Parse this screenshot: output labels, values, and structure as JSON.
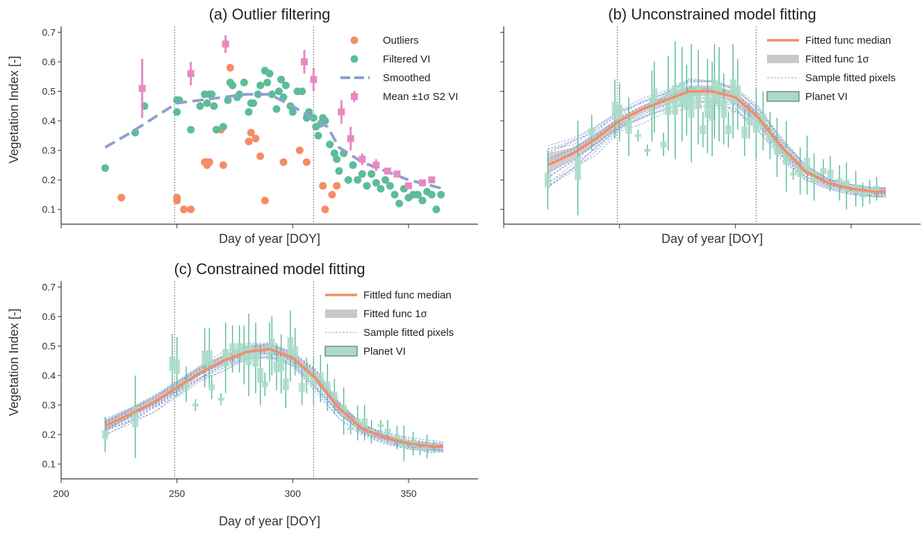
{
  "chart_data": [
    {
      "type": "scatter",
      "title": "(a) Outlier filtering",
      "xlabel": "Day of year [DOY]",
      "ylabel": "Vegetation Index [-]",
      "xlim": [
        200,
        380
      ],
      "ylim": [
        0.05,
        0.72
      ],
      "yticks": [
        0.1,
        0.2,
        0.3,
        0.4,
        0.5,
        0.6,
        0.7
      ],
      "xticks": [
        200,
        250,
        300,
        350
      ],
      "show_xtick_labels": false,
      "vlines": [
        249,
        309
      ],
      "legend_position": "top-right",
      "colors": {
        "outliers": "#f58c66",
        "filtered": "#5dbc9a",
        "smoothed": "#8fa0cf",
        "s2": "#e58ac3"
      },
      "series": [
        {
          "name": "Outliers",
          "kind": "points",
          "x": [
            226,
            250,
            250,
            253,
            256,
            263,
            263,
            262,
            264,
            269,
            270,
            273,
            281,
            282,
            284,
            286,
            288,
            296,
            303,
            306,
            313,
            314,
            317,
            319
          ],
          "y": [
            0.14,
            0.14,
            0.13,
            0.1,
            0.1,
            0.26,
            0.25,
            0.26,
            0.26,
            0.37,
            0.25,
            0.58,
            0.33,
            0.36,
            0.34,
            0.28,
            0.13,
            0.26,
            0.3,
            0.26,
            0.18,
            0.1,
            0.15,
            0.18
          ]
        },
        {
          "name": "Filtered VI",
          "kind": "points",
          "x": [
            219,
            232,
            236,
            250,
            250,
            251,
            256,
            260,
            262,
            263,
            264,
            265,
            266,
            267,
            270,
            272,
            273,
            274,
            276,
            277,
            279,
            281,
            282,
            283,
            285,
            286,
            288,
            289,
            290,
            291,
            293,
            294,
            295,
            296,
            297,
            299,
            300,
            302,
            304,
            306,
            307,
            309,
            310,
            311,
            312,
            313,
            314,
            316,
            318,
            319,
            320,
            322,
            324,
            326,
            328,
            330,
            332,
            334,
            336,
            338,
            340,
            342,
            344,
            346,
            348,
            350,
            352,
            354,
            356,
            358,
            360,
            362,
            364
          ],
          "y": [
            0.24,
            0.36,
            0.45,
            0.47,
            0.43,
            0.47,
            0.37,
            0.45,
            0.49,
            0.46,
            0.49,
            0.49,
            0.45,
            0.37,
            0.38,
            0.47,
            0.53,
            0.52,
            0.48,
            0.49,
            0.53,
            0.43,
            0.46,
            0.46,
            0.49,
            0.52,
            0.57,
            0.53,
            0.56,
            0.49,
            0.44,
            0.5,
            0.54,
            0.48,
            0.52,
            0.45,
            0.43,
            0.5,
            0.5,
            0.41,
            0.43,
            0.41,
            0.38,
            0.35,
            0.39,
            0.41,
            0.4,
            0.32,
            0.29,
            0.27,
            0.23,
            0.29,
            0.2,
            0.25,
            0.2,
            0.22,
            0.18,
            0.22,
            0.19,
            0.17,
            0.2,
            0.18,
            0.15,
            0.12,
            0.17,
            0.14,
            0.15,
            0.15,
            0.13,
            0.16,
            0.15,
            0.1,
            0.15
          ]
        },
        {
          "name": "Smoothed",
          "kind": "dashed-line",
          "x": [
            219,
            230,
            240,
            250,
            260,
            270,
            280,
            290,
            300,
            308,
            315,
            320,
            330,
            340,
            350,
            360,
            365
          ],
          "y": [
            0.31,
            0.36,
            0.41,
            0.46,
            0.47,
            0.48,
            0.49,
            0.49,
            0.45,
            0.41,
            0.38,
            0.31,
            0.26,
            0.23,
            0.2,
            0.18,
            0.17
          ]
        },
        {
          "name": "Mean ±1σ S2 VI",
          "kind": "square-errorbar",
          "x": [
            235,
            256,
            271,
            305,
            309,
            321,
            325,
            330,
            336,
            341,
            345,
            350,
            356,
            360
          ],
          "y": [
            0.51,
            0.56,
            0.66,
            0.6,
            0.54,
            0.43,
            0.34,
            0.27,
            0.25,
            0.23,
            0.22,
            0.18,
            0.19,
            0.2
          ],
          "err": [
            0.1,
            0.04,
            0.03,
            0.04,
            0.04,
            0.04,
            0.04,
            0.02,
            0.02,
            0.01,
            0.01,
            0.01,
            0.01,
            0.01
          ]
        }
      ]
    },
    {
      "type": "line",
      "title": "(b) Unconstrained model fitting",
      "xlabel": "Day of year [DOY]",
      "ylabel": "",
      "xlim": [
        200,
        380
      ],
      "ylim": [
        0.05,
        0.72
      ],
      "yticks": [
        0.1,
        0.2,
        0.3,
        0.4,
        0.5,
        0.6,
        0.7
      ],
      "xticks": [
        200,
        250,
        300,
        350
      ],
      "show_xtick_labels": false,
      "show_ytick_labels": false,
      "vlines": [
        249,
        309
      ],
      "legend_position": "top-right",
      "colors": {
        "median": "#f58c66",
        "band": "#c8c8c8",
        "samples": "#8fa0cf",
        "planet": "#5dbc9a"
      },
      "series": [
        {
          "name": "Fitted func median",
          "kind": "median-line",
          "x": [
            219,
            230,
            240,
            250,
            260,
            270,
            280,
            290,
            300,
            310,
            320,
            330,
            340,
            350,
            360,
            365
          ],
          "y": [
            0.25,
            0.29,
            0.34,
            0.4,
            0.44,
            0.47,
            0.5,
            0.5,
            0.48,
            0.41,
            0.31,
            0.23,
            0.19,
            0.17,
            0.16,
            0.16
          ]
        },
        {
          "name": "Fitted func 1σ",
          "kind": "band",
          "x": [
            219,
            230,
            240,
            250,
            260,
            270,
            280,
            290,
            300,
            310,
            320,
            330,
            340,
            350,
            360,
            365
          ],
          "low": [
            0.22,
            0.27,
            0.32,
            0.38,
            0.43,
            0.46,
            0.48,
            0.49,
            0.46,
            0.39,
            0.29,
            0.22,
            0.18,
            0.16,
            0.15,
            0.15
          ],
          "high": [
            0.29,
            0.31,
            0.36,
            0.41,
            0.45,
            0.49,
            0.52,
            0.52,
            0.5,
            0.43,
            0.33,
            0.25,
            0.2,
            0.18,
            0.17,
            0.17
          ]
        },
        {
          "name": "Sample fitted pixels",
          "kind": "sample-lines",
          "x": [
            219,
            230,
            240,
            250,
            260,
            270,
            280,
            290,
            300,
            310,
            320,
            330,
            340,
            350,
            360,
            365
          ],
          "spread": [
            0.08,
            0.06,
            0.05,
            0.04,
            0.04,
            0.04,
            0.05,
            0.05,
            0.05,
            0.05,
            0.04,
            0.03,
            0.02,
            0.02,
            0.02,
            0.02
          ],
          "count": 18
        },
        {
          "name": "Planet VI",
          "kind": "box",
          "x": [
            219,
            232,
            238,
            248,
            250,
            254,
            258,
            262,
            264,
            265,
            269,
            271,
            274,
            277,
            279,
            281,
            284,
            286,
            288,
            290,
            291,
            293,
            295,
            297,
            299,
            301,
            304,
            306,
            309,
            312,
            315,
            318,
            322,
            325,
            328,
            331,
            334,
            338,
            341,
            345,
            348,
            352,
            355,
            358,
            361
          ],
          "y": [
            0.2,
            0.24,
            0.36,
            0.44,
            0.43,
            0.38,
            0.35,
            0.3,
            0.45,
            0.48,
            0.32,
            0.46,
            0.47,
            0.49,
            0.47,
            0.46,
            0.48,
            0.37,
            0.45,
            0.44,
            0.5,
            0.49,
            0.44,
            0.37,
            0.5,
            0.49,
            0.36,
            0.4,
            0.39,
            0.4,
            0.35,
            0.31,
            0.28,
            0.22,
            0.23,
            0.25,
            0.21,
            0.23,
            0.22,
            0.19,
            0.18,
            0.17,
            0.15,
            0.16,
            0.17
          ],
          "err": [
            0.05,
            0.08,
            0.03,
            0.05,
            0.05,
            0.05,
            0.01,
            0.01,
            0.06,
            0.06,
            0.02,
            0.08,
            0.1,
            0.08,
            0.06,
            0.1,
            0.08,
            0.03,
            0.08,
            0.08,
            0.08,
            0.08,
            0.06,
            0.03,
            0.08,
            0.06,
            0.04,
            0.03,
            0.06,
            0.05,
            0.04,
            0.05,
            0.06,
            0.01,
            0.04,
            0.05,
            0.04,
            0.02,
            0.03,
            0.03,
            0.04,
            0.03,
            0.02,
            0.02,
            0.02
          ]
        }
      ]
    },
    {
      "type": "line",
      "title": "(c) Constrained model fitting",
      "xlabel": "Day of year [DOY]",
      "ylabel": "Vegetation Index [-]",
      "xlim": [
        200,
        380
      ],
      "ylim": [
        0.05,
        0.72
      ],
      "yticks": [
        0.1,
        0.2,
        0.3,
        0.4,
        0.5,
        0.6,
        0.7
      ],
      "xticks": [
        200,
        250,
        300,
        350
      ],
      "show_xtick_labels": true,
      "vlines": [
        249,
        309
      ],
      "legend_position": "top-right",
      "colors": {
        "median": "#f58c66",
        "band": "#c8c8c8",
        "samples": "#8fa0cf",
        "planet": "#5dbc9a"
      },
      "series": [
        {
          "name": "Fittled func median",
          "kind": "median-line",
          "x": [
            219,
            230,
            240,
            250,
            260,
            270,
            280,
            290,
            300,
            310,
            320,
            330,
            340,
            350,
            360,
            365
          ],
          "y": [
            0.23,
            0.27,
            0.31,
            0.36,
            0.41,
            0.45,
            0.48,
            0.49,
            0.46,
            0.39,
            0.29,
            0.22,
            0.19,
            0.17,
            0.16,
            0.16
          ]
        },
        {
          "name": "Fitted func 1σ",
          "kind": "band",
          "x": [
            219,
            230,
            240,
            250,
            260,
            270,
            280,
            290,
            300,
            310,
            320,
            330,
            340,
            350,
            360,
            365
          ],
          "low": [
            0.21,
            0.26,
            0.3,
            0.35,
            0.4,
            0.44,
            0.47,
            0.48,
            0.45,
            0.38,
            0.28,
            0.21,
            0.18,
            0.16,
            0.15,
            0.15
          ],
          "high": [
            0.25,
            0.29,
            0.33,
            0.38,
            0.43,
            0.47,
            0.5,
            0.51,
            0.48,
            0.41,
            0.31,
            0.24,
            0.2,
            0.18,
            0.17,
            0.17
          ]
        },
        {
          "name": "Sample fitted pixels",
          "kind": "sample-lines",
          "x": [
            219,
            230,
            240,
            250,
            260,
            270,
            280,
            290,
            300,
            310,
            320,
            330,
            340,
            350,
            360,
            365
          ],
          "spread": [
            0.03,
            0.03,
            0.03,
            0.03,
            0.03,
            0.03,
            0.03,
            0.03,
            0.03,
            0.04,
            0.03,
            0.02,
            0.02,
            0.02,
            0.02,
            0.02
          ],
          "count": 18
        },
        {
          "name": "Planet VI",
          "kind": "box",
          "x": [
            219,
            232,
            248,
            250,
            254,
            258,
            262,
            264,
            265,
            269,
            271,
            274,
            277,
            279,
            281,
            284,
            286,
            288,
            290,
            291,
            293,
            295,
            297,
            299,
            301,
            304,
            306,
            309,
            312,
            315,
            318,
            322,
            325,
            328,
            331,
            334,
            338,
            341,
            345,
            348,
            352,
            355,
            358,
            361
          ],
          "y": [
            0.2,
            0.26,
            0.44,
            0.43,
            0.37,
            0.3,
            0.46,
            0.46,
            0.36,
            0.32,
            0.46,
            0.49,
            0.49,
            0.47,
            0.47,
            0.46,
            0.4,
            0.37,
            0.48,
            0.5,
            0.43,
            0.44,
            0.37,
            0.5,
            0.48,
            0.36,
            0.4,
            0.38,
            0.39,
            0.36,
            0.33,
            0.28,
            0.22,
            0.24,
            0.24,
            0.21,
            0.23,
            0.21,
            0.19,
            0.17,
            0.17,
            0.15,
            0.16,
            0.16
          ],
          "err": [
            0.03,
            0.07,
            0.05,
            0.05,
            0.03,
            0.01,
            0.05,
            0.05,
            0.02,
            0.01,
            0.06,
            0.04,
            0.04,
            0.05,
            0.07,
            0.06,
            0.05,
            0.02,
            0.05,
            0.05,
            0.04,
            0.05,
            0.04,
            0.06,
            0.04,
            0.03,
            0.03,
            0.04,
            0.04,
            0.04,
            0.03,
            0.04,
            0.01,
            0.03,
            0.03,
            0.02,
            0.01,
            0.02,
            0.02,
            0.03,
            0.02,
            0.01,
            0.02,
            0.01
          ]
        }
      ]
    }
  ]
}
